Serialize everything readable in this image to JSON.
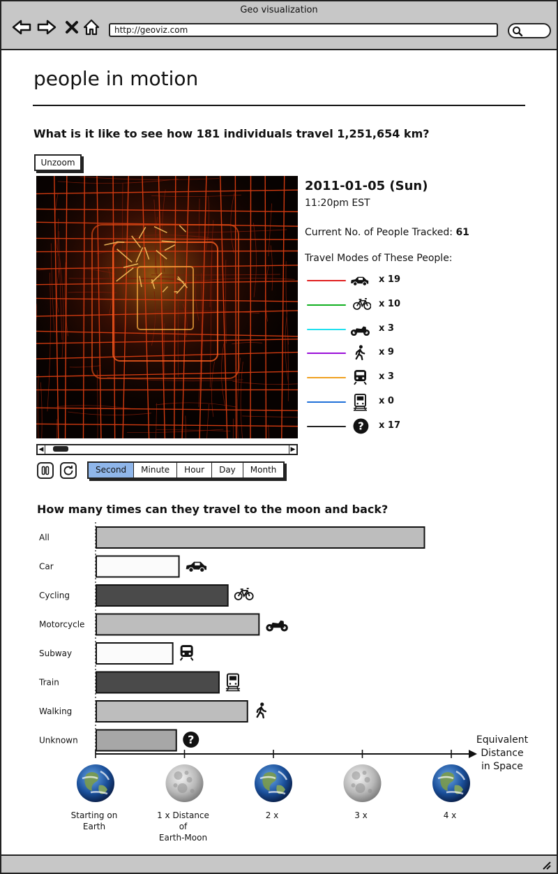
{
  "browser": {
    "window_title": "Geo visualization",
    "url": "http://geoviz.com",
    "nav_icons": [
      "back-arrow-icon",
      "forward-arrow-icon",
      "stop-icon",
      "home-icon"
    ],
    "search_icon": "search-icon"
  },
  "page": {
    "title": "people in motion",
    "question1": "What is it like to see how 181 individuals travel 1,251,654 km?",
    "unzoom_label": "Unzoom",
    "question2": "How many times can they travel to the moon and back?"
  },
  "info": {
    "date": "2011-01-05 (Sun)",
    "time": "11:20pm EST",
    "tracked_label": "Current No. of People Tracked:",
    "tracked_value": "61",
    "modes_label": "Travel Modes of These People:"
  },
  "modes": [
    {
      "icon": "car-icon",
      "color": "#e02020",
      "count": "x 19"
    },
    {
      "icon": "bicycle-icon",
      "color": "#10b020",
      "count": "x 10"
    },
    {
      "icon": "motorcycle-icon",
      "color": "#20e0ef",
      "count": "x 3"
    },
    {
      "icon": "walking-icon",
      "color": "#9a10d8",
      "count": "x 9"
    },
    {
      "icon": "subway-icon",
      "color": "#f0a020",
      "count": "x 3"
    },
    {
      "icon": "train-icon",
      "color": "#2070d8",
      "count": "x 0"
    },
    {
      "icon": "question-icon",
      "color": "#222222",
      "count": "x 17"
    }
  ],
  "playback": {
    "tabs": [
      "Second",
      "Minute",
      "Hour",
      "Day",
      "Month"
    ],
    "active_tab": "Second",
    "scroll_position": 0.03
  },
  "chart_data": {
    "type": "bar",
    "orientation": "horizontal",
    "categories": [
      "All",
      "Car",
      "Cycling",
      "Motorcycle",
      "Subway",
      "Train",
      "Walking",
      "Unknown"
    ],
    "values": [
      3.69,
      0.93,
      1.48,
      1.83,
      0.86,
      1.38,
      1.7,
      0.9
    ],
    "bar_colors": [
      "#bdbdbd",
      "#fbfbfb",
      "#4a4a4a",
      "#bdbdbd",
      "#fbfbfb",
      "#4a4a4a",
      "#bdbdbd",
      "#a7a7a7"
    ],
    "bar_icons": [
      "",
      "car-icon",
      "bicycle-icon",
      "motorcycle-icon",
      "subway-icon",
      "train-icon",
      "walking-icon",
      "question-icon"
    ],
    "xlabel": "Equivalent Distance in Space",
    "xlim": [
      0,
      4
    ],
    "ticks": [
      {
        "value": 0,
        "label": "Starting on Earth",
        "globe": "earth-icon"
      },
      {
        "value": 1,
        "label": "1 x Distance of Earth-Moon",
        "globe": "moon-icon"
      },
      {
        "value": 2,
        "label": "2 x",
        "globe": "earth-icon"
      },
      {
        "value": 3,
        "label": "3 x",
        "globe": "moon-icon"
      },
      {
        "value": 4,
        "label": "4 x",
        "globe": "earth-icon"
      }
    ]
  }
}
